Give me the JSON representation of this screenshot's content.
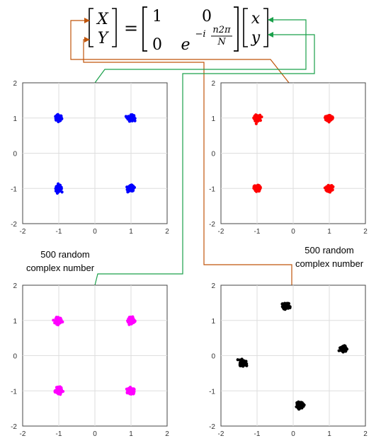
{
  "equation": {
    "lhs_top": "X",
    "lhs_bottom": "Y",
    "equals": "=",
    "m11": "1",
    "m12": "0",
    "m21": "0",
    "m22_base": "e",
    "m22_exp_prefix": "−i",
    "m22_exp_num": "n2π",
    "m22_exp_den": "N",
    "rhs_top": "x",
    "rhs_bottom": "y"
  },
  "annotations": {
    "left_label_line1": "500 random",
    "left_label_line2": "complex number",
    "right_label_line1": "500 random",
    "right_label_line2": "complex number"
  },
  "colors": {
    "blue": "#0000ff",
    "red": "#ff0000",
    "magenta": "#ff00ff",
    "black": "#000000",
    "orange_arrow": "#c0550a",
    "green_arrow": "#1aa04a"
  },
  "chart_data": [
    {
      "type": "scatter",
      "color": "blue",
      "xlim": [
        -2,
        2
      ],
      "ylim": [
        -2,
        2
      ],
      "xticks": [
        "-2",
        "-1",
        "0",
        "1",
        "2"
      ],
      "yticks": [
        "2",
        "1",
        "0",
        "-1",
        "-2"
      ],
      "grid": true,
      "clusters": [
        {
          "x": -1,
          "y": 1
        },
        {
          "x": 1,
          "y": 1
        },
        {
          "x": -1,
          "y": -1
        },
        {
          "x": 1,
          "y": -1
        }
      ]
    },
    {
      "type": "scatter",
      "color": "red",
      "xlim": [
        -2,
        2
      ],
      "ylim": [
        -2,
        2
      ],
      "xticks": [
        "-2",
        "-1",
        "0",
        "1",
        "2"
      ],
      "yticks": [
        "2",
        "1",
        "0",
        "-1",
        "-2"
      ],
      "grid": true,
      "clusters": [
        {
          "x": -1,
          "y": 1
        },
        {
          "x": 1,
          "y": 1
        },
        {
          "x": -1,
          "y": -1
        },
        {
          "x": 1,
          "y": -1
        }
      ]
    },
    {
      "type": "scatter",
      "color": "magenta",
      "xlim": [
        -2,
        2
      ],
      "ylim": [
        -2,
        2
      ],
      "xticks": [
        "-2",
        "-1",
        "0",
        "1",
        "2"
      ],
      "yticks": [
        "2",
        "1",
        "0",
        "-1",
        "-2"
      ],
      "grid": true,
      "clusters": [
        {
          "x": -1,
          "y": 1
        },
        {
          "x": 1,
          "y": 1
        },
        {
          "x": -1,
          "y": -1
        },
        {
          "x": 1,
          "y": -1
        }
      ]
    },
    {
      "type": "scatter",
      "color": "black",
      "xlim": [
        -2,
        2
      ],
      "ylim": [
        -2,
        2
      ],
      "xticks": [
        "-2",
        "-1",
        "0",
        "1",
        "2"
      ],
      "yticks": [
        "2",
        "1",
        "0",
        "-1",
        "-2"
      ],
      "grid": true,
      "clusters": [
        {
          "x": -0.2,
          "y": 1.4
        },
        {
          "x": 1.4,
          "y": 0.2
        },
        {
          "x": -1.4,
          "y": -0.2
        },
        {
          "x": 0.2,
          "y": -1.4
        }
      ]
    }
  ]
}
